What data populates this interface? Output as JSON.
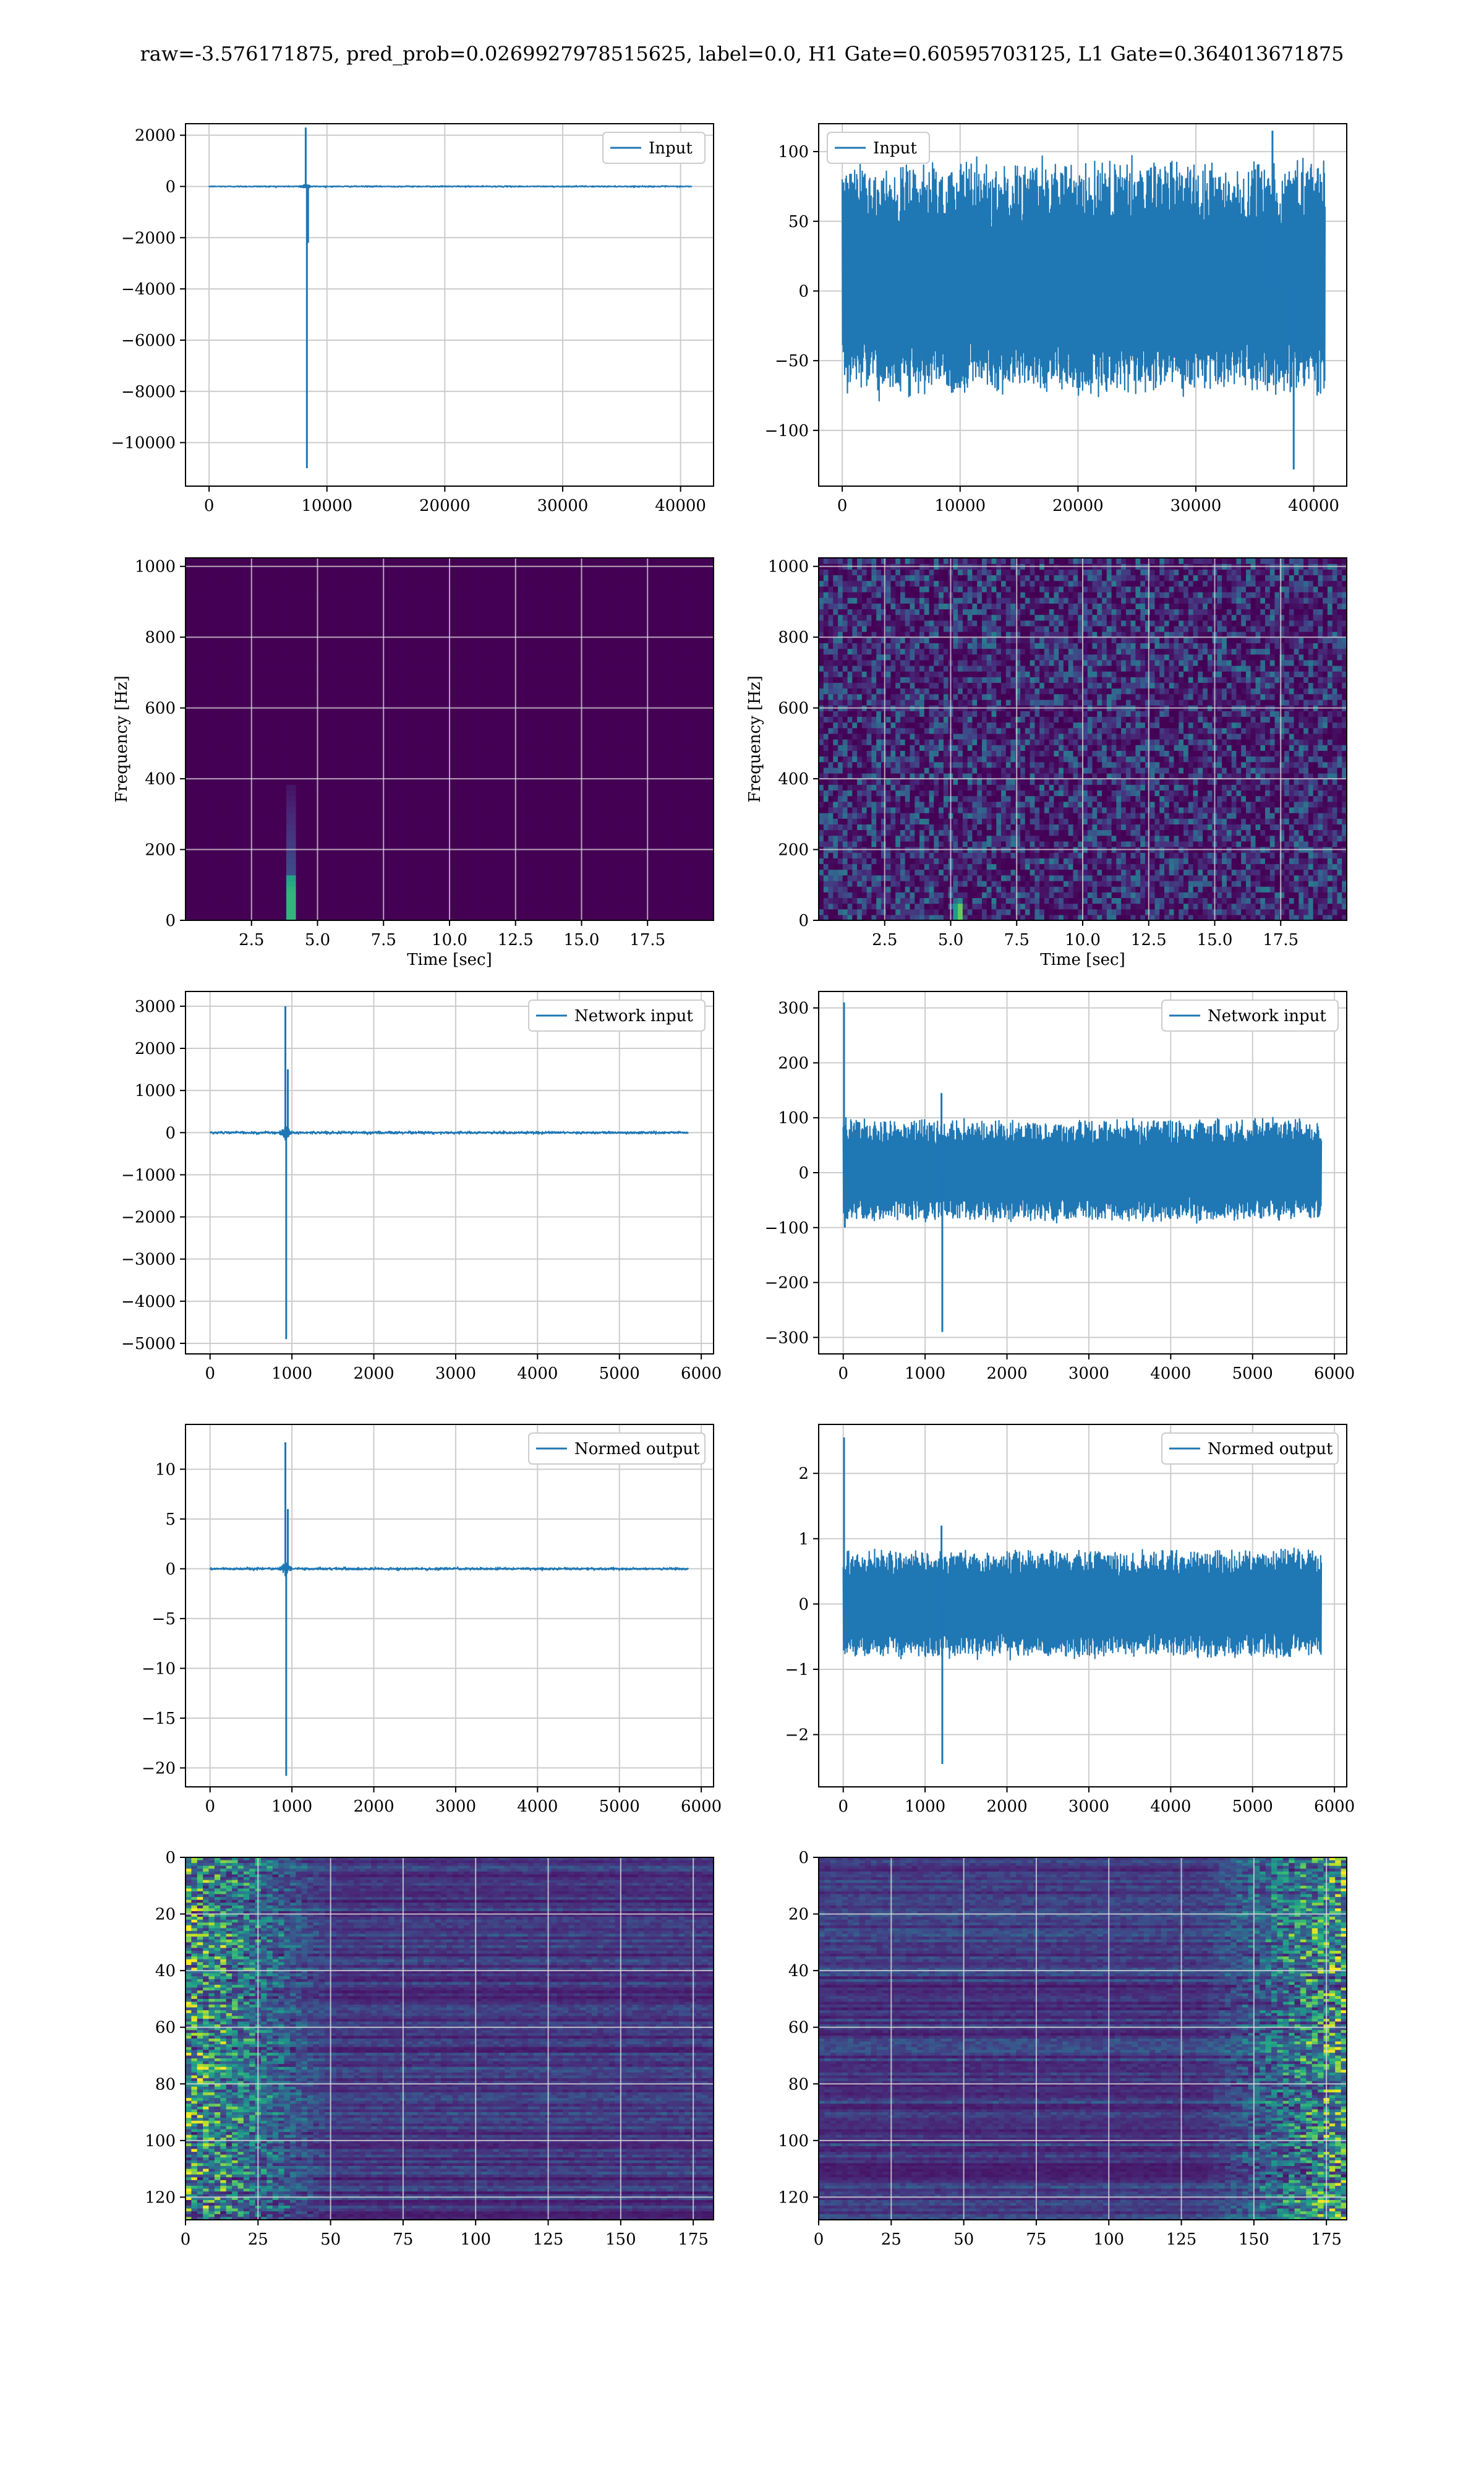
{
  "title": "raw=-3.576171875, pred_prob=0.0269927978515625, label=0.0, H1 Gate=0.60595703125, L1 Gate=0.364013671875",
  "colors": {
    "line": "#1f77b4",
    "grid": "#cccccc",
    "viridis_dark": "#440154",
    "viridis_light": "#fde725"
  },
  "chart_data": [
    {
      "type": "line",
      "legend": "Input",
      "legend_loc": "upper right",
      "xlim": [
        -2000,
        42800
      ],
      "ylim": [
        -11700,
        2450
      ],
      "xticks": [
        0,
        10000,
        20000,
        30000,
        40000
      ],
      "yticks": [
        2000,
        0,
        -2000,
        -4000,
        -6000,
        -8000,
        -10000
      ],
      "xticklabels": [
        "0",
        "10000",
        "20000",
        "30000",
        "40000"
      ],
      "yticklabels": [
        "2000",
        "0",
        "−2000",
        "−4000",
        "−6000",
        "−8000",
        "−10000"
      ],
      "x_range": [
        0,
        40960
      ],
      "noise": 20,
      "spikes": [
        [
          8200,
          2300
        ],
        [
          8300,
          -11000
        ],
        [
          8400,
          -2200
        ]
      ],
      "burst": [
        8200,
        80
      ]
    },
    {
      "type": "line",
      "legend": "Input",
      "legend_loc": "upper left",
      "xlim": [
        -2000,
        42800
      ],
      "ylim": [
        -140,
        120
      ],
      "xticks": [
        0,
        10000,
        20000,
        30000,
        40000
      ],
      "yticks": [
        100,
        50,
        0,
        -50,
        -100
      ],
      "xticklabels": [
        "0",
        "10000",
        "20000",
        "30000",
        "40000"
      ],
      "yticklabels": [
        "100",
        "50",
        "0",
        "−50",
        "−100"
      ],
      "x_range": [
        0,
        40960
      ],
      "noise": 40,
      "band": [
        -70,
        90
      ],
      "spikes": [
        [
          36500,
          115
        ],
        [
          38300,
          -128
        ]
      ]
    },
    {
      "type": "heatmap",
      "subtype": "spectrogram",
      "xlabel": "Time [sec]",
      "ylabel": "Frequency [Hz]",
      "xlim": [
        0,
        20
      ],
      "ylim": [
        0,
        1024
      ],
      "xticks": [
        2.5,
        5.0,
        7.5,
        10.0,
        12.5,
        15.0,
        17.5
      ],
      "yticks": [
        0,
        200,
        400,
        600,
        800,
        1000
      ],
      "xticklabels": [
        "2.5",
        "5.0",
        "7.5",
        "10.0",
        "12.5",
        "15.0",
        "17.5"
      ],
      "yticklabels": [
        "0",
        "200",
        "400",
        "600",
        "800",
        "1000"
      ],
      "background": "uniform",
      "blob": {
        "t": 4.0,
        "f": 80,
        "f_top": 380
      }
    },
    {
      "type": "heatmap",
      "subtype": "spectrogram",
      "xlabel": "Time [sec]",
      "ylabel": "Frequency [Hz]",
      "xlim": [
        0,
        20
      ],
      "ylim": [
        0,
        1024
      ],
      "xticks": [
        2.5,
        5.0,
        7.5,
        10.0,
        12.5,
        15.0,
        17.5
      ],
      "yticks": [
        0,
        200,
        400,
        600,
        800,
        1000
      ],
      "xticklabels": [
        "2.5",
        "5.0",
        "7.5",
        "10.0",
        "12.5",
        "15.0",
        "17.5"
      ],
      "yticklabels": [
        "0",
        "200",
        "400",
        "600",
        "800",
        "1000"
      ],
      "background": "noise",
      "blob": {
        "t": 5.3,
        "f": 40,
        "f_top": 80
      }
    },
    {
      "type": "line",
      "legend": "Network input",
      "legend_loc": "upper right",
      "xlim": [
        -300,
        6150
      ],
      "ylim": [
        -5250,
        3350
      ],
      "xticks": [
        0,
        1000,
        2000,
        3000,
        4000,
        5000,
        6000
      ],
      "yticks": [
        3000,
        2000,
        1000,
        0,
        -1000,
        -2000,
        -3000,
        -4000,
        -5000
      ],
      "xticklabels": [
        "0",
        "1000",
        "2000",
        "3000",
        "4000",
        "5000",
        "6000"
      ],
      "yticklabels": [
        "3000",
        "2000",
        "1000",
        "0",
        "−1000",
        "−2000",
        "−3000",
        "−4000",
        "−5000"
      ],
      "x_range": [
        0,
        5840
      ],
      "noise": 25,
      "spikes": [
        [
          920,
          3000
        ],
        [
          930,
          -4900
        ],
        [
          950,
          1500
        ]
      ],
      "burst": [
        920,
        180
      ]
    },
    {
      "type": "line",
      "legend": "Network input",
      "legend_loc": "upper right",
      "xlim": [
        -300,
        6150
      ],
      "ylim": [
        -330,
        330
      ],
      "xticks": [
        0,
        1000,
        2000,
        3000,
        4000,
        5000,
        6000
      ],
      "yticks": [
        300,
        200,
        100,
        0,
        -100,
        -200,
        -300
      ],
      "xticklabels": [
        "0",
        "1000",
        "2000",
        "3000",
        "4000",
        "5000",
        "6000"
      ],
      "yticklabels": [
        "300",
        "200",
        "100",
        "0",
        "−100",
        "−200",
        "−300"
      ],
      "x_range": [
        0,
        5840
      ],
      "noise": 35,
      "band": [
        -85,
        95
      ],
      "spikes": [
        [
          10,
          310
        ],
        [
          1200,
          145
        ],
        [
          1210,
          -290
        ],
        [
          20,
          -100
        ]
      ]
    },
    {
      "type": "line",
      "legend": "Normed output",
      "legend_loc": "upper right",
      "xlim": [
        -300,
        6150
      ],
      "ylim": [
        -21.9,
        14.5
      ],
      "xticks": [
        0,
        1000,
        2000,
        3000,
        4000,
        5000,
        6000
      ],
      "yticks": [
        10,
        5,
        0,
        -5,
        -10,
        -15,
        -20
      ],
      "xticklabels": [
        "0",
        "1000",
        "2000",
        "3000",
        "4000",
        "5000",
        "6000"
      ],
      "yticklabels": [
        "10",
        "5",
        "0",
        "−5",
        "−10",
        "−15",
        "−20"
      ],
      "x_range": [
        0,
        5840
      ],
      "noise": 0.1,
      "spikes": [
        [
          920,
          12.7
        ],
        [
          930,
          -20.8
        ],
        [
          950,
          6
        ]
      ],
      "burst": [
        920,
        0.8
      ]
    },
    {
      "type": "line",
      "legend": "Normed output",
      "legend_loc": "upper right",
      "xlim": [
        -300,
        6150
      ],
      "ylim": [
        -2.8,
        2.75
      ],
      "xticks": [
        0,
        1000,
        2000,
        3000,
        4000,
        5000,
        6000
      ],
      "yticks": [
        2,
        1,
        0,
        -1,
        -2
      ],
      "xticklabels": [
        "0",
        "1000",
        "2000",
        "3000",
        "4000",
        "5000",
        "6000"
      ],
      "yticklabels": [
        "2",
        "1",
        "0",
        "−1",
        "−2"
      ],
      "x_range": [
        0,
        5840
      ],
      "noise": 0.3,
      "band": [
        -0.8,
        0.8
      ],
      "spikes": [
        [
          10,
          2.55
        ],
        [
          1200,
          1.2
        ],
        [
          1210,
          -2.45
        ]
      ]
    },
    {
      "type": "heatmap",
      "subtype": "matrix",
      "xlim": [
        0,
        182
      ],
      "ylim": [
        128,
        0
      ],
      "xticks": [
        0,
        25,
        50,
        75,
        100,
        125,
        150,
        175
      ],
      "yticks": [
        0,
        20,
        40,
        60,
        80,
        100,
        120
      ],
      "xticklabels": [
        "0",
        "25",
        "50",
        "75",
        "100",
        "125",
        "150",
        "175"
      ],
      "yticklabels": [
        "0",
        "20",
        "40",
        "60",
        "80",
        "100",
        "120"
      ],
      "bright_side": "left"
    },
    {
      "type": "heatmap",
      "subtype": "matrix",
      "xlim": [
        0,
        182
      ],
      "ylim": [
        128,
        0
      ],
      "xticks": [
        0,
        25,
        50,
        75,
        100,
        125,
        150,
        175
      ],
      "yticks": [
        0,
        20,
        40,
        60,
        80,
        100,
        120
      ],
      "xticklabels": [
        "0",
        "25",
        "50",
        "75",
        "100",
        "125",
        "150",
        "175"
      ],
      "yticklabels": [
        "0",
        "20",
        "40",
        "60",
        "80",
        "100",
        "120"
      ],
      "bright_side": "right"
    }
  ]
}
